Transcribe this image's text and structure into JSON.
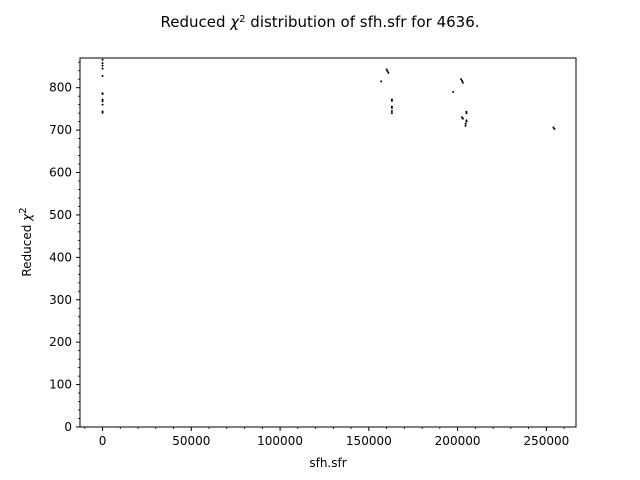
{
  "chart_data": {
    "type": "scatter",
    "title": {
      "prefix": "Reduced ",
      "symbol": "χ",
      "sup": "2",
      "suffix": " distribution of sfh.sfr for 4636."
    },
    "xlabel": "sfh.sfr",
    "ylabel": {
      "prefix": "Reduced ",
      "symbol": "χ",
      "sup": "2"
    },
    "xlim": [
      -12700,
      266700
    ],
    "ylim": [
      0,
      870
    ],
    "xticks": [
      0,
      50000,
      100000,
      150000,
      200000,
      250000
    ],
    "yticks": [
      0,
      100,
      200,
      300,
      400,
      500,
      600,
      700,
      800
    ],
    "grid": false,
    "marker_color": "#000000",
    "points": [
      [
        0,
        866
      ],
      [
        0,
        858
      ],
      [
        0,
        852
      ],
      [
        0,
        845
      ],
      [
        0,
        828
      ],
      [
        0,
        787
      ],
      [
        0,
        785
      ],
      [
        0,
        772
      ],
      [
        0,
        768
      ],
      [
        0,
        760
      ],
      [
        0,
        744
      ],
      [
        0,
        741
      ],
      [
        157000,
        815
      ],
      [
        160000,
        843
      ],
      [
        160500,
        839
      ],
      [
        161000,
        835
      ],
      [
        163000,
        772
      ],
      [
        163000,
        769
      ],
      [
        163000,
        755
      ],
      [
        163000,
        752
      ],
      [
        163000,
        745
      ],
      [
        163000,
        740
      ],
      [
        197500,
        790
      ],
      [
        202000,
        820
      ],
      [
        202500,
        816
      ],
      [
        203000,
        812
      ],
      [
        202500,
        730
      ],
      [
        203000,
        727
      ],
      [
        205000,
        743
      ],
      [
        205000,
        740
      ],
      [
        205000,
        723
      ],
      [
        205000,
        720
      ],
      [
        204500,
        715
      ],
      [
        204500,
        710
      ],
      [
        254000,
        706
      ],
      [
        254500,
        703
      ]
    ]
  }
}
